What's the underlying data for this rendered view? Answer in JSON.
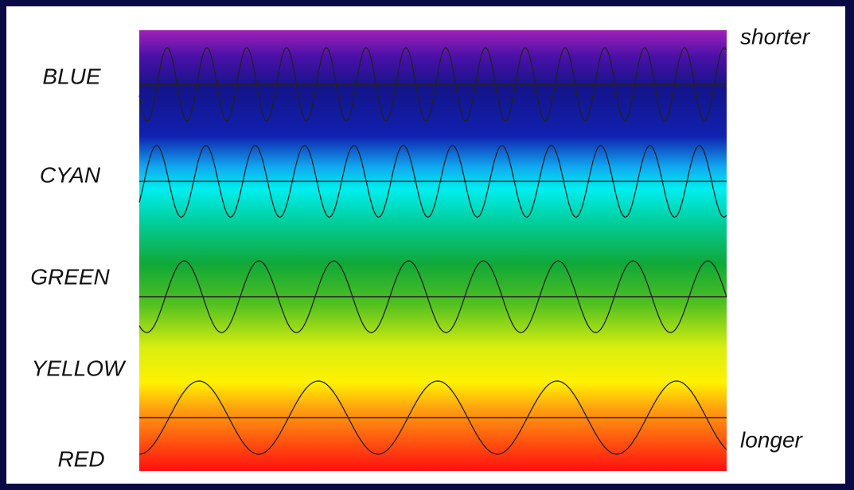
{
  "bands": [
    {
      "label": "BLUE"
    },
    {
      "label": "CYAN"
    },
    {
      "label": "GREEN"
    },
    {
      "label": "YELLOW"
    },
    {
      "label": "RED"
    }
  ],
  "scale": {
    "top": "shorter",
    "bottom": "longer"
  }
}
